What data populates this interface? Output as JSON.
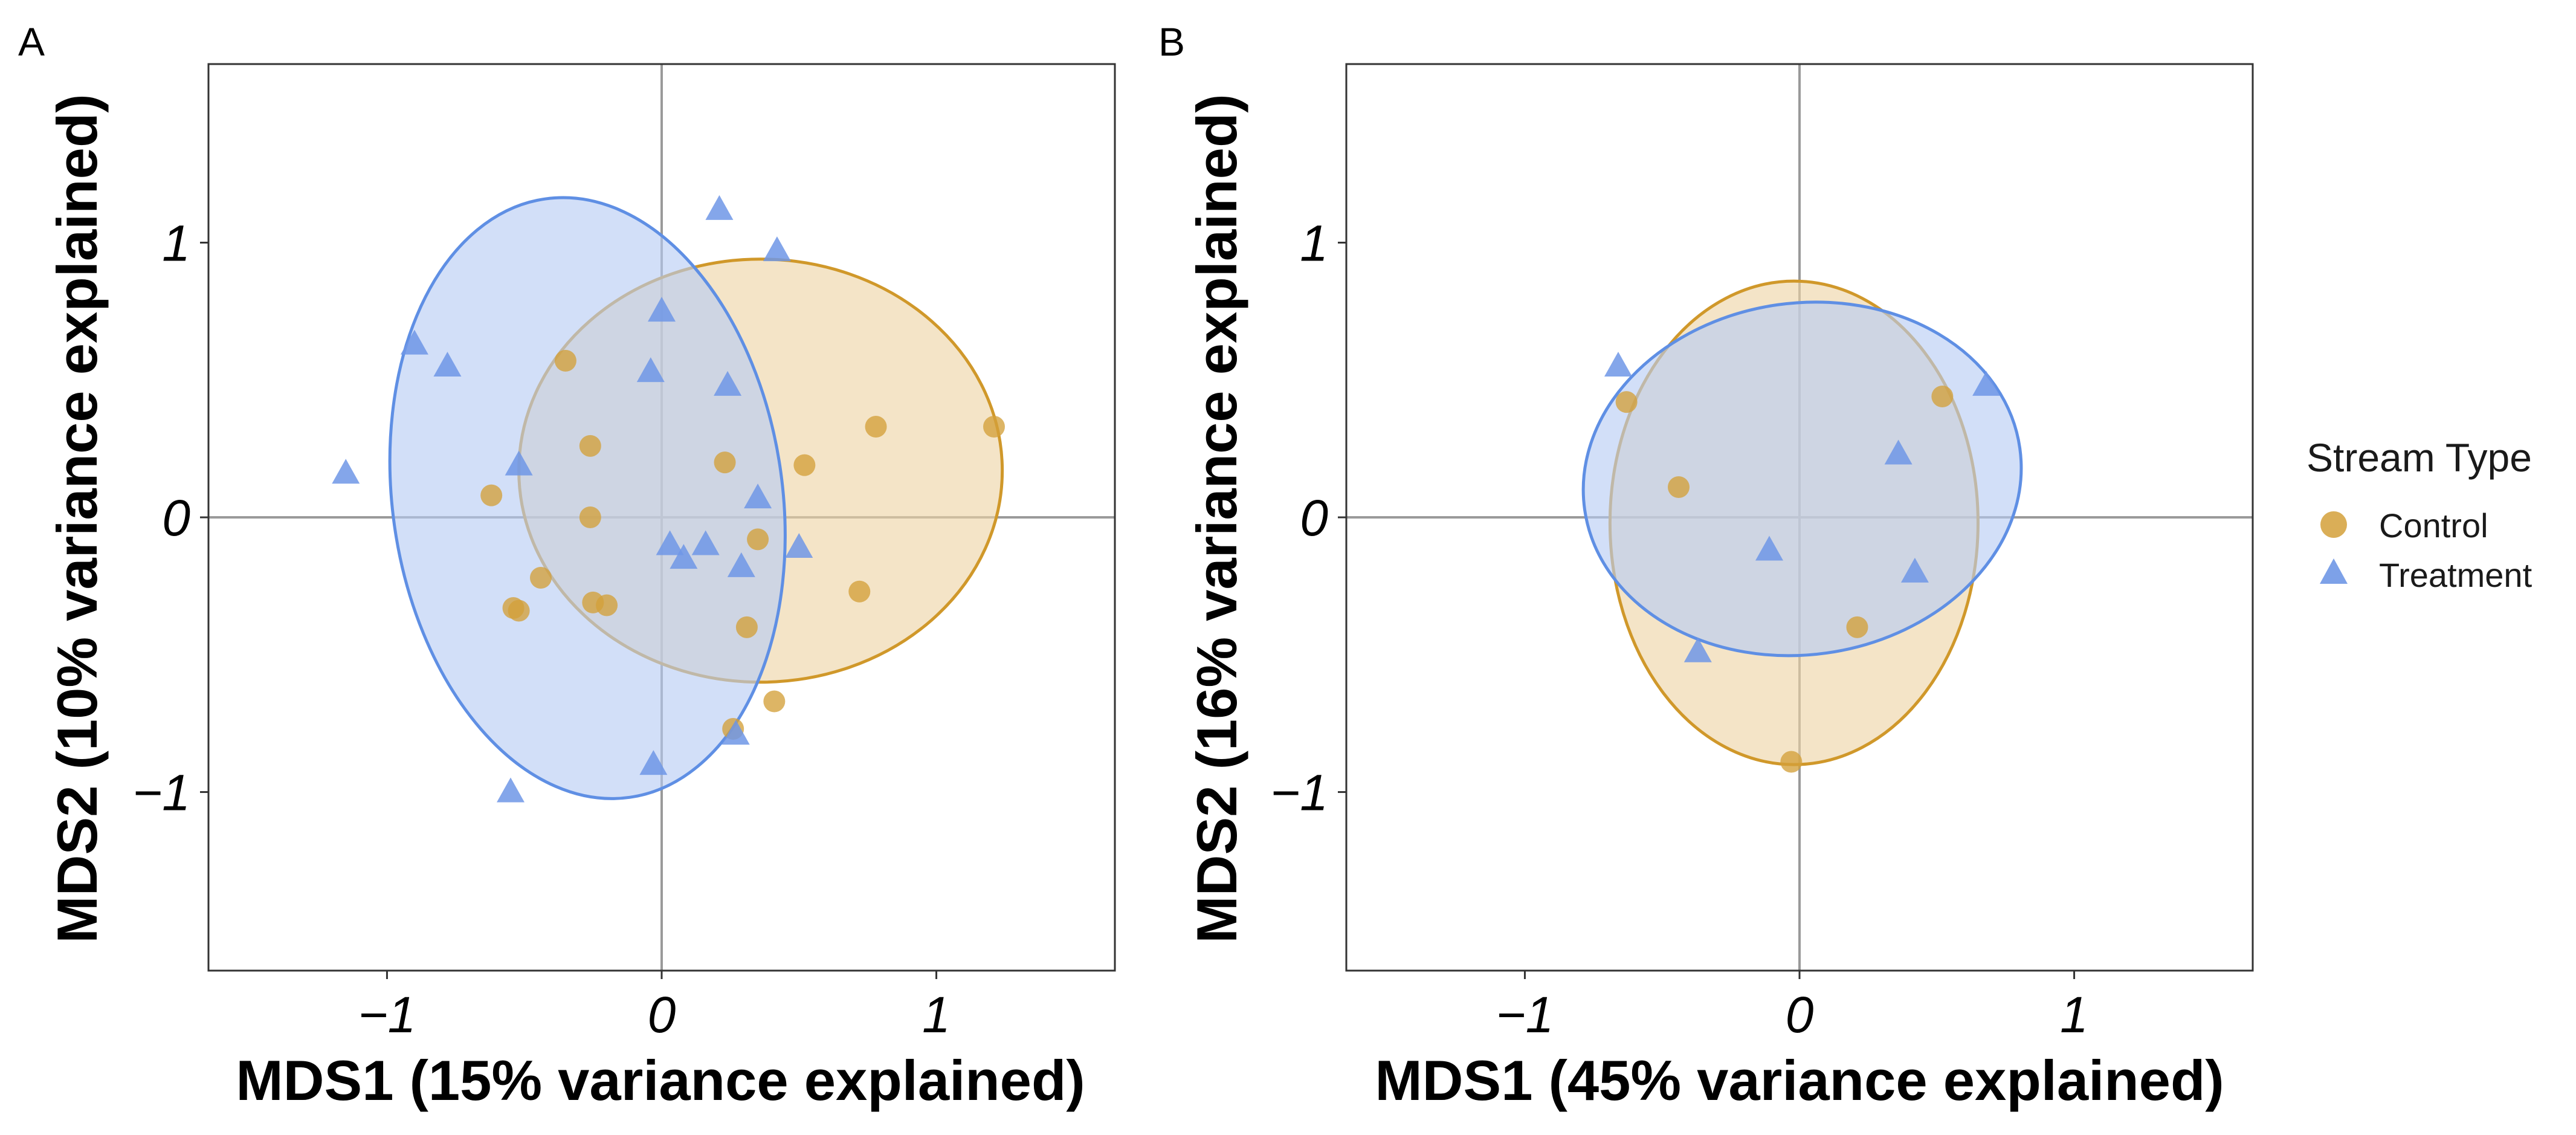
{
  "colors": {
    "control": "#d4a03a",
    "treatment": "#6f97e6",
    "control_ellipse_fill": "#edd3a5",
    "treatment_ellipse_fill": "#b6ccf4",
    "control_ellipse_stroke": "#d0982a",
    "treatment_ellipse_stroke": "#5f8fe4",
    "zero_line": "#9a9a9a",
    "frame": "#333333"
  },
  "legend": {
    "title": "Stream Type",
    "entries": [
      {
        "label": "Control",
        "shape": "circle-icon"
      },
      {
        "label": "Treatment",
        "shape": "triangle-icon"
      }
    ]
  },
  "chart_data": [
    {
      "type": "scatter",
      "panel": "A",
      "xlabel": "MDS1 (15% variance explained)",
      "ylabel": "MDS2 (10% variance explained)",
      "xlim": [
        -1.65,
        1.65
      ],
      "ylim": [
        -1.65,
        1.65
      ],
      "xticks": [
        -1,
        0,
        1
      ],
      "yticks": [
        -1,
        0,
        1
      ],
      "xtick_labels": [
        "−1",
        "0",
        "1"
      ],
      "ytick_labels": [
        "−1",
        "0",
        "1"
      ],
      "series": [
        {
          "name": "Control",
          "marker": "circle",
          "points": [
            [
              -0.35,
              0.57
            ],
            [
              -0.26,
              0.26
            ],
            [
              -0.62,
              0.08
            ],
            [
              -0.26,
              0.0
            ],
            [
              -0.44,
              -0.22
            ],
            [
              -0.54,
              -0.33
            ],
            [
              -0.52,
              -0.34
            ],
            [
              -0.25,
              -0.31
            ],
            [
              -0.2,
              -0.32
            ],
            [
              0.23,
              0.2
            ],
            [
              0.52,
              0.19
            ],
            [
              0.35,
              -0.08
            ],
            [
              0.31,
              -0.4
            ],
            [
              0.26,
              -0.77
            ],
            [
              0.41,
              -0.67
            ],
            [
              0.72,
              -0.27
            ],
            [
              0.78,
              0.33
            ],
            [
              1.21,
              0.33
            ]
          ],
          "ellipse": {
            "cx": 0.36,
            "cy": 0.17,
            "rx": 0.88,
            "ry": 0.77,
            "angle": 0
          }
        },
        {
          "name": "Treatment",
          "marker": "triangle",
          "points": [
            [
              0.21,
              1.12
            ],
            [
              0.42,
              0.97
            ],
            [
              -0.9,
              0.63
            ],
            [
              -0.78,
              0.55
            ],
            [
              -1.15,
              0.16
            ],
            [
              -0.52,
              0.19
            ],
            [
              -0.04,
              0.53
            ],
            [
              0.0,
              0.75
            ],
            [
              0.24,
              0.48
            ],
            [
              0.35,
              0.07
            ],
            [
              0.03,
              -0.1
            ],
            [
              0.08,
              -0.15
            ],
            [
              0.16,
              -0.1
            ],
            [
              0.29,
              -0.18
            ],
            [
              0.5,
              -0.11
            ],
            [
              -0.03,
              -0.9
            ],
            [
              0.27,
              -0.79
            ],
            [
              -0.55,
              -1.0
            ]
          ],
          "ellipse": {
            "cx": -0.27,
            "cy": 0.07,
            "rx": 0.71,
            "ry": 1.1,
            "angle": -8
          }
        }
      ]
    },
    {
      "type": "scatter",
      "panel": "B",
      "xlabel": "MDS1 (45% variance explained)",
      "ylabel": "MDS2 (16% variance explained)",
      "xlim": [
        -1.65,
        1.65
      ],
      "ylim": [
        -1.65,
        1.65
      ],
      "xticks": [
        -1,
        0,
        1
      ],
      "yticks": [
        -1,
        0,
        1
      ],
      "xtick_labels": [
        "−1",
        "0",
        "1"
      ],
      "ytick_labels": [
        "−1",
        "0",
        "1"
      ],
      "series": [
        {
          "name": "Control",
          "marker": "circle",
          "points": [
            [
              -0.63,
              0.42
            ],
            [
              -0.44,
              0.11
            ],
            [
              0.52,
              0.44
            ],
            [
              0.21,
              -0.4
            ],
            [
              -0.03,
              -0.89
            ]
          ],
          "ellipse": {
            "cx": -0.02,
            "cy": -0.02,
            "rx": 0.67,
            "ry": 0.88,
            "angle": 0
          }
        },
        {
          "name": "Treatment",
          "marker": "triangle",
          "points": [
            [
              -0.66,
              0.55
            ],
            [
              0.68,
              0.48
            ],
            [
              0.36,
              0.23
            ],
            [
              -0.11,
              -0.12
            ],
            [
              0.42,
              -0.2
            ],
            [
              -0.37,
              -0.49
            ]
          ],
          "ellipse": {
            "cx": 0.01,
            "cy": 0.14,
            "rx": 0.8,
            "ry": 0.64,
            "angle": -8
          }
        }
      ]
    }
  ]
}
